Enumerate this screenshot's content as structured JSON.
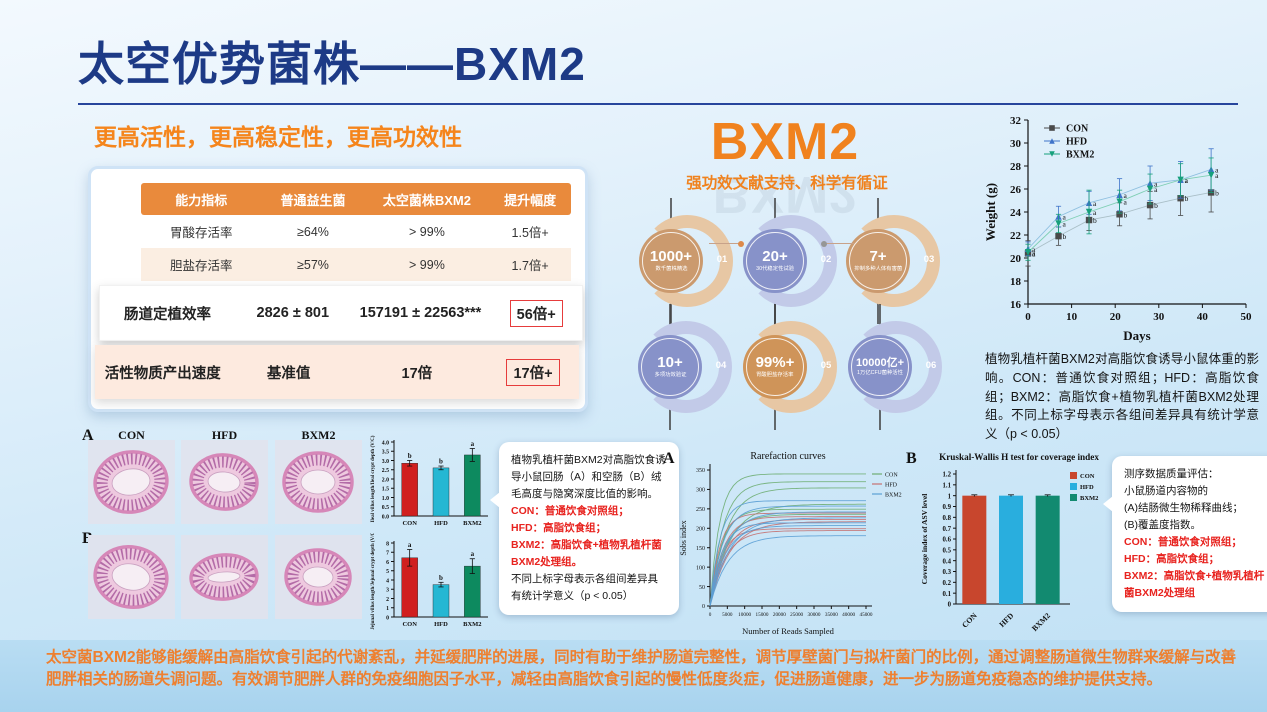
{
  "slide": {
    "title": "太空优势菌株——BXM2",
    "subtitle": "更高活性，更高稳定性，更高功效性",
    "accent_orange": "#f0821e",
    "title_navy": "#1d3a86",
    "footer": "太空菌BXM2能够能缓解由高脂饮食引起的代谢紊乱，并延缓肥胖的进展，同时有助于维护肠道完整性，调节厚壁菌门与拟杆菌门的比例，通过调整肠道微生物群来缓解与改善肥胖相关的肠道失调问题。有效调节肥胖人群的免疫细胞因子水平，减轻由高脂饮食引起的慢性低度炎症，促进肠道健康，进一步为肠道免疫稳态的维护提供支持。"
  },
  "comparison_table": {
    "headers": [
      "能力指标",
      "普通益生菌",
      "太空菌株BXM2",
      "提升幅度"
    ],
    "header_color": "#e98a3c",
    "rows": [
      {
        "indicator": "胃酸存活率",
        "normal": "≥64%",
        "bxm2": "> 99%",
        "gain": "1.5倍+",
        "boxed": false
      },
      {
        "indicator": "胆盐存活率",
        "normal": "≥57%",
        "bxm2": "> 99%",
        "gain": "1.7倍+",
        "boxed": false
      },
      {
        "indicator": "肠道定植效率",
        "normal": "2826 ± 801",
        "bxm2": "157191 ± 22563***",
        "gain": "56倍+",
        "boxed": true
      },
      {
        "indicator": "活性物质产出速度",
        "normal": "基准值",
        "bxm2": "17倍",
        "gain": "17倍+",
        "boxed": true
      }
    ]
  },
  "bxm2_section": {
    "heading": "BXM2",
    "tagline": "强功效文献支持、科学有循证",
    "badges": [
      {
        "value": "1000+",
        "label": "数千菌株精选",
        "index": "01",
        "core": "#cb9a6e",
        "arc": "#e7c7a4"
      },
      {
        "value": "20+",
        "label": "30代稳定性试验",
        "index": "02",
        "core": "#8792c9",
        "arc": "#c2cae8"
      },
      {
        "value": "7+",
        "label": "抑制多种人体有害菌",
        "index": "03",
        "core": "#cb9a6e",
        "arc": "#e7c7a4"
      },
      {
        "value": "10+",
        "label": "多项功效验证",
        "index": "04",
        "core": "#8792c9",
        "arc": "#c2cae8"
      },
      {
        "value": "99%+",
        "label": "胃酸胆盐存活率",
        "index": "05",
        "core": "#cf9459",
        "arc": "#e7c7a4"
      },
      {
        "value": "10000亿+",
        "label": "1万亿CFU菌种活性",
        "index": "06",
        "core": "#8792c9",
        "arc": "#c2cae8"
      }
    ]
  },
  "weight_figure": {
    "caption": "植物乳植杆菌BXM2对高脂饮食诱导小鼠体重的影响。CON：普通饮食对照组；HFD：高脂饮食组；BXM2：高脂饮食+植物乳植杆菌BXM2处理组。不同上标字母表示各组间差异具有统计学意义（p < 0.05）"
  },
  "histology": {
    "panel_a_label": "A",
    "panel_b_label": "B",
    "columns": [
      "CON",
      "HFD",
      "BXM2"
    ],
    "note": {
      "intro": "植物乳植杆菌BXM2对高脂饮食诱导小鼠回肠（A）和空肠（B）绒毛高度与隐窝深度比值的影响。",
      "red_lines": [
        "CON：普通饮食对照组；",
        "HFD：高脂饮食组；",
        "BXM2：高脂饮食+植物乳植杆菌BXM2处理组。"
      ],
      "outro": "不同上标字母表示各组间差异具有统计学意义（p < 0.05）"
    }
  },
  "sequencing": {
    "panel_a_label": "A",
    "panel_b_label": "B",
    "note": {
      "black_lines": [
        "测序数据质量评估：",
        "小鼠肠道内容物的",
        "(A)结肠微生物稀释曲线；",
        "(B)覆盖度指数。"
      ],
      "red_lines": [
        "CON：普通饮食对照组；",
        "HFD：高脂饮食组；",
        "BXM2：高脂饮食+植物乳植杆菌BXM2处理组"
      ]
    }
  },
  "chart_data": [
    {
      "id": "weight",
      "type": "line",
      "xlabel": "Days",
      "ylabel": "Weight (g)",
      "xlim": [
        0,
        50
      ],
      "ylim": [
        16,
        32
      ],
      "xticks": [
        0,
        10,
        20,
        30,
        40,
        50
      ],
      "yticks": [
        16,
        18,
        20,
        22,
        24,
        26,
        28,
        30,
        32
      ],
      "x": [
        0,
        7,
        14,
        21,
        28,
        35,
        42
      ],
      "legend_position": "top-left",
      "series": [
        {
          "name": "CON",
          "marker": "square",
          "color": "#4a4a4a",
          "line_color": "#aabfc8",
          "values": [
            20.4,
            21.9,
            23.3,
            23.8,
            24.6,
            25.2,
            25.7
          ],
          "errors": [
            1.1,
            0.8,
            0.9,
            1.0,
            1.2,
            1.5,
            1.7
          ],
          "letters": [
            "a",
            "b",
            "b",
            "b",
            "b",
            "b",
            "b"
          ]
        },
        {
          "name": "HFD",
          "marker": "triangle-up",
          "color": "#3f74c9",
          "line_color": "#8fc0e0",
          "values": [
            20.8,
            23.6,
            24.8,
            25.5,
            26.5,
            26.8,
            27.7
          ],
          "errors": [
            0.6,
            0.9,
            1.0,
            1.4,
            1.5,
            1.6,
            1.8
          ],
          "letters": [
            "a",
            "a",
            "a",
            "a",
            "a",
            "a",
            "a"
          ]
        },
        {
          "name": "BXM2",
          "marker": "triangle-down",
          "color": "#17a07c",
          "line_color": "#7fcfb4",
          "values": [
            20.5,
            23.0,
            24.0,
            24.9,
            26.0,
            26.8,
            27.2
          ],
          "errors": [
            0.7,
            0.8,
            1.9,
            1.0,
            1.3,
            1.4,
            1.5
          ],
          "letters": [
            "a",
            "a",
            "a",
            "a",
            "a",
            "a",
            "a"
          ]
        }
      ]
    },
    {
      "id": "ileal",
      "type": "bar",
      "ylabel": "Ileal villus length/Ileal crypt depth (V/C)",
      "categories": [
        "CON",
        "HFD",
        "BXM2"
      ],
      "values": [
        2.85,
        2.6,
        3.3
      ],
      "errors": [
        0.15,
        0.1,
        0.35
      ],
      "letters": [
        "b",
        "b",
        "a"
      ],
      "colors": [
        "#d01f1f",
        "#25b7d3",
        "#0d8a5f"
      ],
      "ylim": [
        0,
        4
      ],
      "ytick_step": 0.5
    },
    {
      "id": "jejunal",
      "type": "bar",
      "ylabel": "Jejunal villus length/Jejunal crypt depth (V/C)",
      "categories": [
        "CON",
        "HFD",
        "BXM2"
      ],
      "values": [
        6.4,
        3.5,
        5.5
      ],
      "errors": [
        0.9,
        0.25,
        0.8
      ],
      "letters": [
        "a",
        "b",
        "a"
      ],
      "colors": [
        "#d01f1f",
        "#25b7d3",
        "#0d8a5f"
      ],
      "ylim": [
        0,
        8
      ],
      "ytick_step": 1
    },
    {
      "id": "rarefaction",
      "type": "line",
      "title": "Rarefaction curves",
      "xlabel": "Number of Reads Sampled",
      "ylabel": "Sobs index",
      "xlim": [
        0,
        45000
      ],
      "ylim": [
        0,
        350
      ],
      "xtick_step": 5000,
      "ytick_step": 50,
      "legend_position": "top-right",
      "series": [
        {
          "name": "CON",
          "color": "#6fae73",
          "plateaus": [
            340,
            320,
            304,
            262,
            249,
            236
          ]
        },
        {
          "name": "HFD",
          "color": "#c47272",
          "plateaus": [
            239,
            230,
            223,
            217,
            199,
            194
          ]
        },
        {
          "name": "BXM2",
          "color": "#5b9fd4",
          "plateaus": [
            271,
            257,
            242,
            227,
            214,
            207,
            181
          ]
        }
      ]
    },
    {
      "id": "coverage",
      "type": "bar",
      "title": "Kruskal-Wallis H test for coverage index",
      "ylabel": "Coverage index of ASV level",
      "categories": [
        "CON",
        "HFD",
        "BXM2"
      ],
      "values": [
        1.0,
        1.0,
        1.0
      ],
      "errors": [
        0.008,
        0.008,
        0.008
      ],
      "colors": [
        "#c8462d",
        "#29aede",
        "#128a70"
      ],
      "ylim": [
        0,
        1.2
      ],
      "ytick_step": 0.1,
      "legend": [
        "CON",
        "HFD",
        "BXM2"
      ]
    }
  ]
}
